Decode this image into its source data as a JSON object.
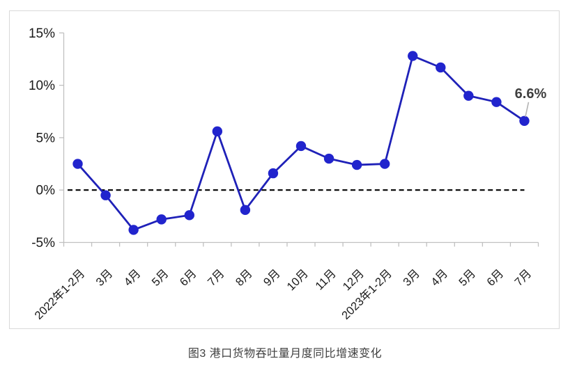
{
  "caption": "图3 港口货物吞吐量月度同比增速变化",
  "chart_data": {
    "type": "line",
    "title": "图3 港口货物吞吐量月度同比增速变化",
    "categories": [
      "2022年1-2月",
      "3月",
      "4月",
      "5月",
      "6月",
      "7月",
      "8月",
      "9月",
      "10月",
      "11月",
      "12月",
      "2023年1-2月",
      "3月",
      "4月",
      "5月",
      "6月",
      "7月"
    ],
    "values": [
      2.5,
      -0.5,
      -3.8,
      -2.8,
      -2.4,
      5.6,
      -1.9,
      1.6,
      4.2,
      3.0,
      2.4,
      2.5,
      12.8,
      11.7,
      9.0,
      8.4,
      6.6
    ],
    "xlabel": "",
    "ylabel": "",
    "ylim": [
      -5,
      15
    ],
    "yticks": [
      {
        "value": -5,
        "label": "-5%"
      },
      {
        "value": 0,
        "label": "0%"
      },
      {
        "value": 5,
        "label": "5%"
      },
      {
        "value": 10,
        "label": "10%"
      },
      {
        "value": 15,
        "label": "15%"
      }
    ],
    "zero_line": {
      "value": 0,
      "style": "dashed"
    },
    "annotation": {
      "text": "6.6%",
      "index": 16
    },
    "grid": false,
    "legend_position": "none"
  },
  "colors": {
    "series_line": "#1f21b8",
    "series_marker": "#2124cd",
    "zero_line": "#000000",
    "axis": "#c0c0c0",
    "frame": "#d9d9d9",
    "tick_label": "#1a1a1a",
    "annotation_text": "#3f3f3f",
    "leader_line": "#b3b3b3",
    "caption_text": "#3f3f3f",
    "background": "#ffffff"
  }
}
